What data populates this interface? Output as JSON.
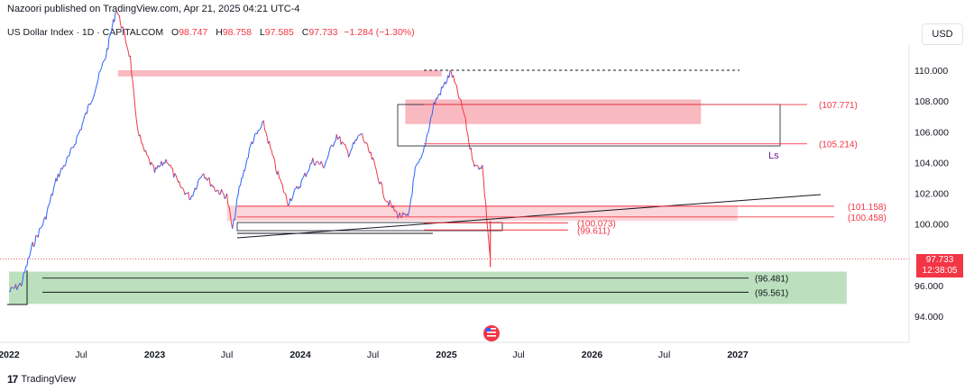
{
  "header": {
    "published": "Nazoori published on TradingView.com, Apr 21, 2025 04:21 UTC-4"
  },
  "legend": {
    "title": "US Dollar Index · 1D · CAPITALCOM",
    "o_label": "O",
    "o": "98.747",
    "h_label": "H",
    "h": "98.758",
    "l_label": "L",
    "l": "97.585",
    "c_label": "C",
    "c": "97.733",
    "change": "−1.284 (−1.30%)"
  },
  "currency": "USD",
  "price_tag": {
    "price": "97.733",
    "countdown": "12:38:05"
  },
  "footer": {
    "brand": "TradingView"
  },
  "colors": {
    "up": "#2962ff",
    "down": "#f23645",
    "zone_red": "#f7a1ab",
    "zone_green": "#a5d6a7"
  },
  "chart_data": {
    "type": "line",
    "symbol": "US Dollar Index",
    "interval": "1D",
    "ylim": [
      93.5,
      111.5
    ],
    "y_ticks": [
      "110.000",
      "108.000",
      "106.000",
      "104.000",
      "102.000",
      "100.000",
      "96.000",
      "94.000"
    ],
    "x_ticks": [
      "2022",
      "Jul",
      "2023",
      "Jul",
      "2024",
      "Jul",
      "2025",
      "Jul",
      "2026",
      "Jul",
      "2027"
    ],
    "series": [
      {
        "x": [
          "2022-01-01",
          "2022-02-01",
          "2022-03-01",
          "2022-04-01",
          "2022-05-01",
          "2022-06-01",
          "2022-07-01",
          "2022-08-01",
          "2022-09-01",
          "2022-09-27",
          "2022-10-15",
          "2022-11-01",
          "2022-11-15",
          "2022-12-01",
          "2023-01-01",
          "2023-02-01",
          "2023-03-01",
          "2023-04-01",
          "2023-05-01",
          "2023-06-01",
          "2023-07-01",
          "2023-07-15",
          "2023-08-01",
          "2023-09-01",
          "2023-10-01",
          "2023-11-01",
          "2023-12-01",
          "2024-01-01",
          "2024-02-01",
          "2024-03-01",
          "2024-04-01",
          "2024-05-01",
          "2024-06-01",
          "2024-07-01",
          "2024-08-01",
          "2024-09-01",
          "2024-09-27",
          "2024-10-15",
          "2024-11-01",
          "2024-12-01",
          "2025-01-13",
          "2025-02-01",
          "2025-02-15",
          "2025-03-01",
          "2025-03-15",
          "2025-04-01",
          "2025-04-21"
        ],
        "values": [
          95.6,
          96.1,
          98.6,
          100.3,
          103.0,
          104.4,
          106.3,
          108.5,
          111.0,
          114.0,
          112.5,
          110.8,
          106.8,
          105.0,
          103.4,
          104.2,
          102.6,
          101.7,
          103.4,
          102.3,
          101.8,
          99.6,
          102.3,
          105.3,
          106.5,
          103.6,
          101.4,
          102.6,
          104.1,
          103.8,
          105.8,
          104.6,
          105.9,
          104.1,
          101.7,
          100.6,
          100.4,
          103.5,
          104.3,
          107.8,
          109.9,
          108.3,
          107.1,
          105.0,
          103.7,
          103.8,
          97.733
        ]
      }
    ],
    "zones": [
      {
        "color": "red",
        "x_start": "2022-10-01",
        "x_end": "2024-12-20",
        "y_low": 109.6,
        "y_high": 110.0
      },
      {
        "color": "red",
        "x_start": "2024-09-20",
        "x_end": "2026-10-01",
        "y_low": 106.5,
        "y_high": 108.1
      },
      {
        "color": "red",
        "x_start": "2023-07-01",
        "x_end": "2027-01-01",
        "y_low": 100.2,
        "y_high": 101.2
      },
      {
        "color": "green",
        "x_start": "2022-01-01",
        "x_end": "2027-10-01",
        "y_low": 94.8,
        "y_high": 96.9
      }
    ],
    "levels": [
      {
        "label": "(107.771)",
        "value": 107.771
      },
      {
        "label": "(105.214)",
        "value": 105.214
      },
      {
        "label": "(101.158)",
        "value": 101.158
      },
      {
        "label": "(100.458)",
        "value": 100.458
      },
      {
        "label": "(100.073)",
        "value": 100.073
      },
      {
        "label": "(99.611)",
        "value": 99.611
      },
      {
        "label": "(96.481)",
        "value": 96.481
      },
      {
        "label": "(95.561)",
        "value": 95.561
      }
    ],
    "annotations": [
      "Ls"
    ]
  }
}
